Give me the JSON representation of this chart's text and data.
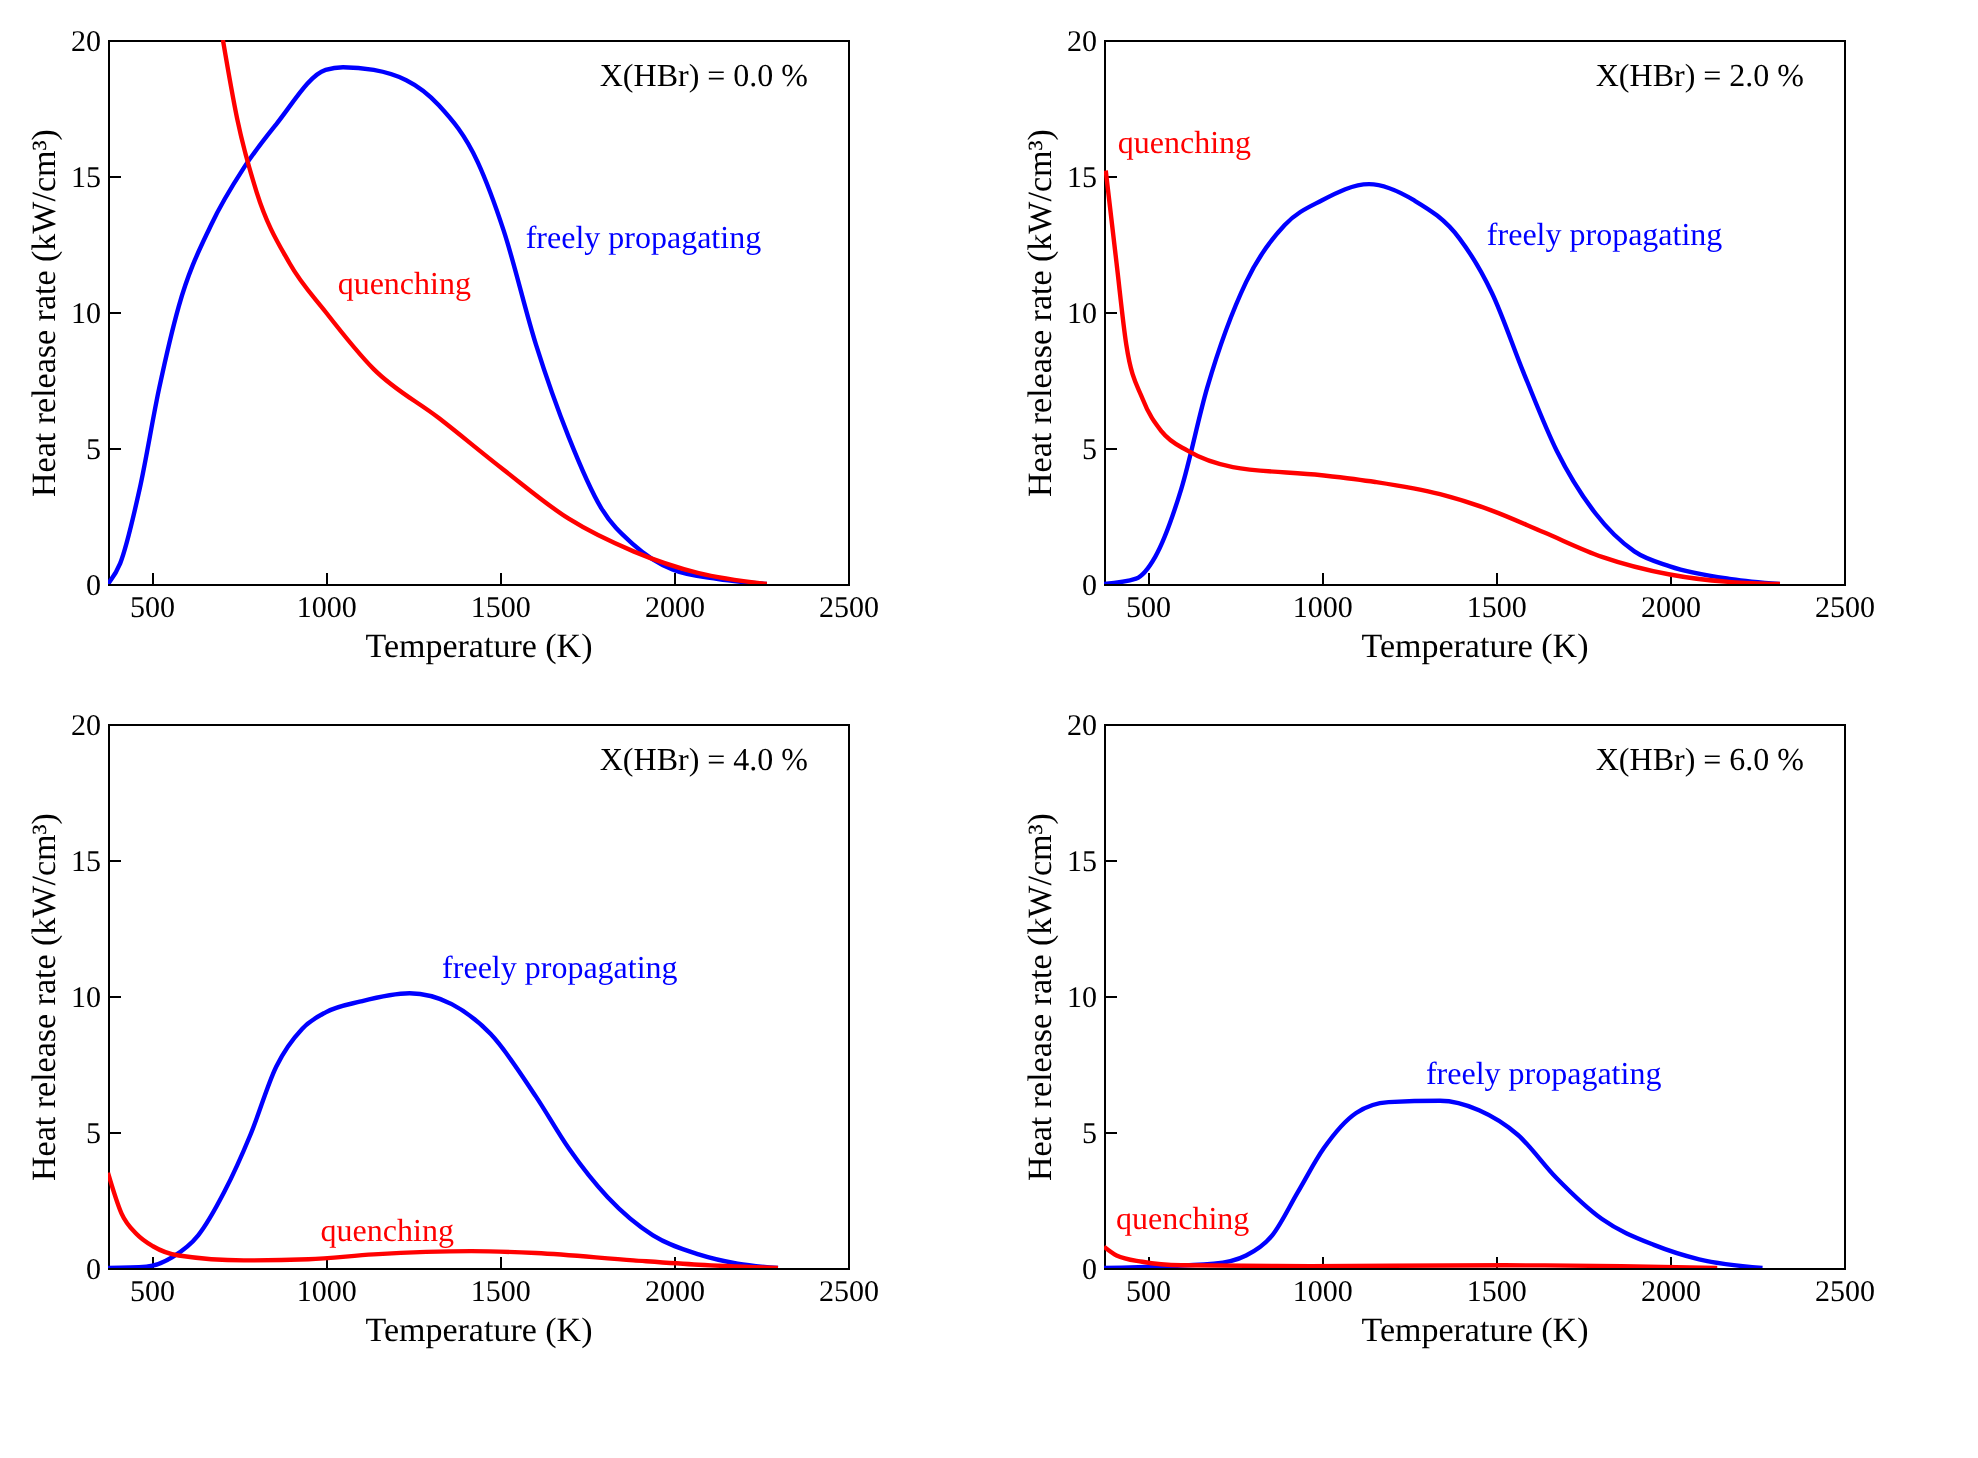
{
  "chart_data": [
    {
      "type": "line",
      "xlabel": "Temperature (K)",
      "ylabel": "Heat release rate (kW/cm³)",
      "xlim": [
        375,
        2500
      ],
      "ylim": [
        0,
        20
      ],
      "xticks": [
        500,
        1000,
        1500,
        2000,
        2500
      ],
      "yticks": [
        0,
        5,
        10,
        15,
        20
      ],
      "annotations": [
        "X(HBr) = 0.0 %",
        {
          "text": "freely propagating",
          "x": 1540,
          "y": 11.7
        },
        {
          "text": "quenching",
          "x": 1000,
          "y": 10.0
        }
      ],
      "series": [
        {
          "color": "#0000ff",
          "x": [
            375,
            410,
            466,
            522,
            578,
            671,
            765,
            858,
            1000,
            1050,
            1138,
            1325,
            1437,
            1511,
            1604,
            1698,
            1791,
            1884,
            1996,
            2127,
            2267
          ],
          "values": [
            0,
            0.76,
            3.5,
            7.2,
            10.2,
            13.2,
            15.3,
            16.9,
            18.9,
            19.0,
            18.9,
            17.6,
            15.5,
            13.0,
            8.8,
            5.4,
            2.8,
            1.45,
            0.53,
            0.18,
            0
          ]
        },
        {
          "color": "#ff0000",
          "x": [
            705,
            746,
            802,
            896,
            1000,
            1138,
            1325,
            1511,
            1698,
            1884,
            2071,
            2267
          ],
          "values": [
            20,
            17.1,
            14.4,
            11.8,
            10.0,
            7.9,
            6.1,
            4.2,
            2.4,
            1.2,
            0.4,
            0
          ]
        }
      ]
    },
    {
      "type": "line",
      "xlabel": "Temperature (K)",
      "ylabel": "Heat release rate (kW/cm³)",
      "xlim": [
        375,
        2500
      ],
      "ylim": [
        0,
        20
      ],
      "xticks": [
        500,
        1000,
        1500,
        2000,
        2500
      ],
      "yticks": [
        0,
        5,
        10,
        15,
        20
      ],
      "annotations": [
        "X(HBr) = 2.0 %",
        {
          "text": "freely propagating",
          "x": 1440,
          "y": 11.8
        },
        {
          "text": "quenching",
          "x": 380,
          "y": 15.2
        }
      ],
      "series": [
        {
          "color": "#0000ff",
          "x": [
            375,
            467,
            522,
            597,
            671,
            783,
            894,
            1000,
            1136,
            1266,
            1396,
            1489,
            1582,
            1675,
            1786,
            1898,
            2000,
            2177,
            2316
          ],
          "values": [
            0,
            0.2,
            1.0,
            3.5,
            7.2,
            11.1,
            13.2,
            14.1,
            14.7,
            14.1,
            12.7,
            10.7,
            7.7,
            4.9,
            2.6,
            1.2,
            0.65,
            0.18,
            0
          ]
        },
        {
          "color": "#ff0000",
          "x": [
            380,
            411,
            439,
            486,
            541,
            615,
            745,
            1000,
            1154,
            1340,
            1489,
            1638,
            1805,
            2000,
            2177,
            2316
          ],
          "values": [
            15.2,
            11.8,
            8.8,
            6.8,
            5.6,
            4.9,
            4.3,
            4.0,
            3.75,
            3.3,
            2.7,
            1.9,
            1.0,
            0.35,
            0.07,
            0
          ]
        }
      ]
    },
    {
      "type": "line",
      "xlabel": "Temperature (K)",
      "ylabel": "Heat release rate (kW/cm³)",
      "xlim": [
        375,
        2500
      ],
      "ylim": [
        0,
        20
      ],
      "xticks": [
        500,
        1000,
        1500,
        2000,
        2500
      ],
      "yticks": [
        0,
        5,
        10,
        15,
        20
      ],
      "annotations": [
        "X(HBr) = 4.0 %",
        {
          "text": "freely propagating",
          "x": 1300,
          "y": 10.0
        },
        {
          "text": "quenching",
          "x": 951,
          "y": 0.32
        }
      ],
      "series": [
        {
          "color": "#0000ff",
          "x": [
            375,
            485,
            560,
            634,
            709,
            784,
            858,
            933,
            1000,
            1101,
            1241,
            1362,
            1474,
            1604,
            1698,
            1810,
            1940,
            2071,
            2183,
            2299
          ],
          "values": [
            0,
            0.05,
            0.4,
            1.2,
            2.8,
            4.9,
            7.4,
            8.8,
            9.4,
            9.8,
            10.1,
            9.7,
            8.6,
            6.3,
            4.4,
            2.6,
            1.2,
            0.5,
            0.16,
            0
          ]
        },
        {
          "color": "#ff0000",
          "x": [
            375,
            414,
            457,
            504,
            578,
            765,
            951,
            1138,
            1418,
            1604,
            1884,
            2071,
            2299
          ],
          "values": [
            3.5,
            2.0,
            1.25,
            0.8,
            0.46,
            0.28,
            0.32,
            0.5,
            0.62,
            0.55,
            0.28,
            0.12,
            0
          ]
        }
      ]
    },
    {
      "type": "line",
      "xlabel": "Temperature (K)",
      "ylabel": "Heat release rate (kW/cm³)",
      "xlim": [
        375,
        2500
      ],
      "ylim": [
        0,
        20
      ],
      "xticks": [
        500,
        1000,
        1500,
        2000,
        2500
      ],
      "yticks": [
        0,
        5,
        10,
        15,
        20
      ],
      "annotations": [
        "X(HBr) = 6.0 %",
        {
          "text": "freely propagating",
          "x": 1265,
          "y": 6.1
        },
        {
          "text": "quenching",
          "x": 375,
          "y": 0.78
        }
      ],
      "series": [
        {
          "color": "#0000ff",
          "x": [
            375,
            690,
            783,
            858,
            932,
            1006,
            1099,
            1192,
            1340,
            1452,
            1563,
            1675,
            1805,
            1954,
            2084,
            2266
          ],
          "values": [
            0,
            0.16,
            0.46,
            1.2,
            2.8,
            4.4,
            5.7,
            6.1,
            6.15,
            5.8,
            4.9,
            3.3,
            1.8,
            0.85,
            0.32,
            0
          ]
        },
        {
          "color": "#ff0000",
          "x": [
            375,
            411,
            485,
            597,
            968,
            1526,
            1861,
            2136
          ],
          "values": [
            0.78,
            0.46,
            0.23,
            0.1,
            0.07,
            0.1,
            0.07,
            0
          ]
        }
      ]
    }
  ]
}
